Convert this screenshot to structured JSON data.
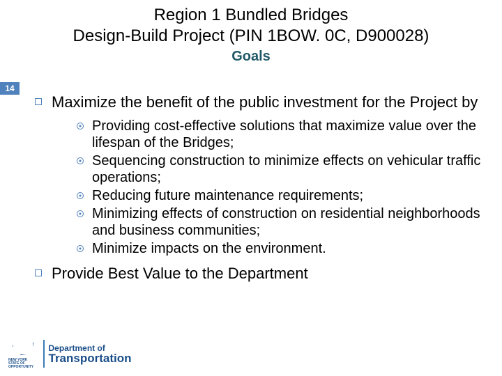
{
  "header": {
    "title_line1": "Region 1 Bundled Bridges",
    "title_line2": "Design-Build Project (PIN 1BOW. 0C, D900028)",
    "section_title": "Goals"
  },
  "page_number": "14",
  "bullets": [
    {
      "text": "Maximize the benefit of the public investment for the Project by",
      "sub": [
        "Providing cost-effective solutions that maximize value over the lifespan of the Bridges;",
        "Sequencing construction to minimize effects on vehicular traffic operations;",
        "Reducing future maintenance requirements;",
        "Minimizing effects of construction on residential neighborhoods and business communities;",
        "Minimize impacts on the environment."
      ]
    },
    {
      "text": "Provide Best Value to the Department",
      "sub": []
    }
  ],
  "footer": {
    "ny_label": "NEW YORK\nSTATE OF\nOPPORTUNITY",
    "dept_of": "Department of",
    "dept_name": "Transportation"
  },
  "colors": {
    "accent": "#4f81bd",
    "section_title": "#215968",
    "logo_blue": "#1a4e8a"
  }
}
